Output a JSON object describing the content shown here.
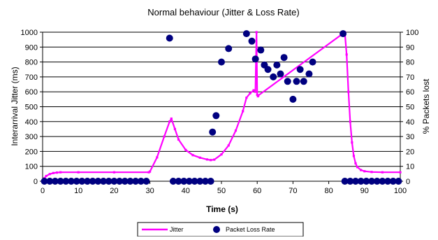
{
  "chart_data": {
    "type": "line",
    "title": "Normal behaviour (Jitter & Loss Rate)",
    "xlabel": "Time (s)",
    "ylabel": "Interarrival Jitter (ms)",
    "y2label": "% Packets lost",
    "xlim": [
      0,
      100
    ],
    "ylim": [
      0,
      1000
    ],
    "y2lim": [
      0,
      100
    ],
    "x_ticks": [
      "0",
      "10",
      "20",
      "30",
      "40",
      "50",
      "60",
      "70",
      "80",
      "90",
      "100"
    ],
    "y_ticks": [
      "0",
      "100",
      "200",
      "300",
      "400",
      "500",
      "600",
      "700",
      "800",
      "900",
      "1000"
    ],
    "y2_ticks": [
      "0",
      "10",
      "20",
      "30",
      "40",
      "50",
      "60",
      "70",
      "80",
      "90",
      "100"
    ],
    "grid": "horizontal",
    "legend_position": "bottom",
    "series": [
      {
        "name": "Jitter",
        "axis": "left",
        "style": "line-with-markers",
        "color": "#ff00ff",
        "points": [
          [
            0,
            0
          ],
          [
            0.5,
            20
          ],
          [
            1,
            35
          ],
          [
            2,
            48
          ],
          [
            3,
            55
          ],
          [
            4,
            58
          ],
          [
            5,
            60
          ],
          [
            10,
            60
          ],
          [
            20,
            60
          ],
          [
            29.7,
            60
          ],
          [
            30,
            65
          ],
          [
            32,
            160
          ],
          [
            34,
            300
          ],
          [
            35.5,
            400
          ],
          [
            36,
            420
          ],
          [
            37,
            350
          ],
          [
            38,
            280
          ],
          [
            40,
            210
          ],
          [
            42,
            175
          ],
          [
            44,
            158
          ],
          [
            46,
            146
          ],
          [
            47,
            142
          ],
          [
            48,
            145
          ],
          [
            50,
            180
          ],
          [
            52,
            240
          ],
          [
            54,
            340
          ],
          [
            56,
            470
          ],
          [
            57,
            560
          ],
          [
            58,
            590
          ],
          [
            59,
            610
          ],
          [
            59.5,
            600
          ],
          [
            59.8,
            1000
          ],
          [
            60,
            580
          ],
          [
            60.2,
            570
          ],
          [
            60.3,
            575
          ],
          [
            84.5,
            1000
          ],
          [
            85,
            850
          ],
          [
            85.5,
            600
          ],
          [
            86,
            400
          ],
          [
            86.5,
            260
          ],
          [
            87,
            170
          ],
          [
            87.5,
            120
          ],
          [
            88,
            95
          ],
          [
            89,
            75
          ],
          [
            90,
            67
          ],
          [
            92,
            62
          ],
          [
            95,
            60
          ],
          [
            100,
            60
          ]
        ]
      },
      {
        "name": "Packet Loss Rate",
        "axis": "right",
        "style": "markers",
        "color": "#000080",
        "points": [
          [
            0.5,
            0
          ],
          [
            2,
            0
          ],
          [
            3.5,
            0
          ],
          [
            5,
            0
          ],
          [
            6.5,
            0
          ],
          [
            8,
            0
          ],
          [
            9.5,
            0
          ],
          [
            11,
            0
          ],
          [
            12.5,
            0
          ],
          [
            14,
            0
          ],
          [
            15.5,
            0
          ],
          [
            17,
            0
          ],
          [
            18.5,
            0
          ],
          [
            20,
            0
          ],
          [
            21.5,
            0
          ],
          [
            23,
            0
          ],
          [
            24.5,
            0
          ],
          [
            26,
            0
          ],
          [
            27.5,
            0
          ],
          [
            29,
            0
          ],
          [
            35.5,
            96
          ],
          [
            36.5,
            0
          ],
          [
            38,
            0
          ],
          [
            39.5,
            0
          ],
          [
            41,
            0
          ],
          [
            42.5,
            0
          ],
          [
            44,
            0
          ],
          [
            45.5,
            0
          ],
          [
            47,
            0
          ],
          [
            47.5,
            33
          ],
          [
            48.5,
            44
          ],
          [
            50,
            80
          ],
          [
            52,
            89
          ],
          [
            57,
            99
          ],
          [
            58.5,
            94
          ],
          [
            59.5,
            82
          ],
          [
            61,
            88
          ],
          [
            62,
            78
          ],
          [
            63,
            75
          ],
          [
            64.5,
            70
          ],
          [
            65.5,
            78
          ],
          [
            66.5,
            72
          ],
          [
            67.5,
            83
          ],
          [
            68.5,
            67
          ],
          [
            70,
            55
          ],
          [
            71,
            67
          ],
          [
            72,
            75
          ],
          [
            73,
            67
          ],
          [
            74.5,
            72
          ],
          [
            75.5,
            80
          ],
          [
            84,
            99
          ],
          [
            84.5,
            0
          ],
          [
            86,
            0
          ],
          [
            87.5,
            0
          ],
          [
            89,
            0
          ],
          [
            90.5,
            0
          ],
          [
            92,
            0
          ],
          [
            93.5,
            0
          ],
          [
            95,
            0
          ],
          [
            96.5,
            0
          ],
          [
            98,
            0
          ],
          [
            99.5,
            0
          ]
        ]
      }
    ]
  }
}
